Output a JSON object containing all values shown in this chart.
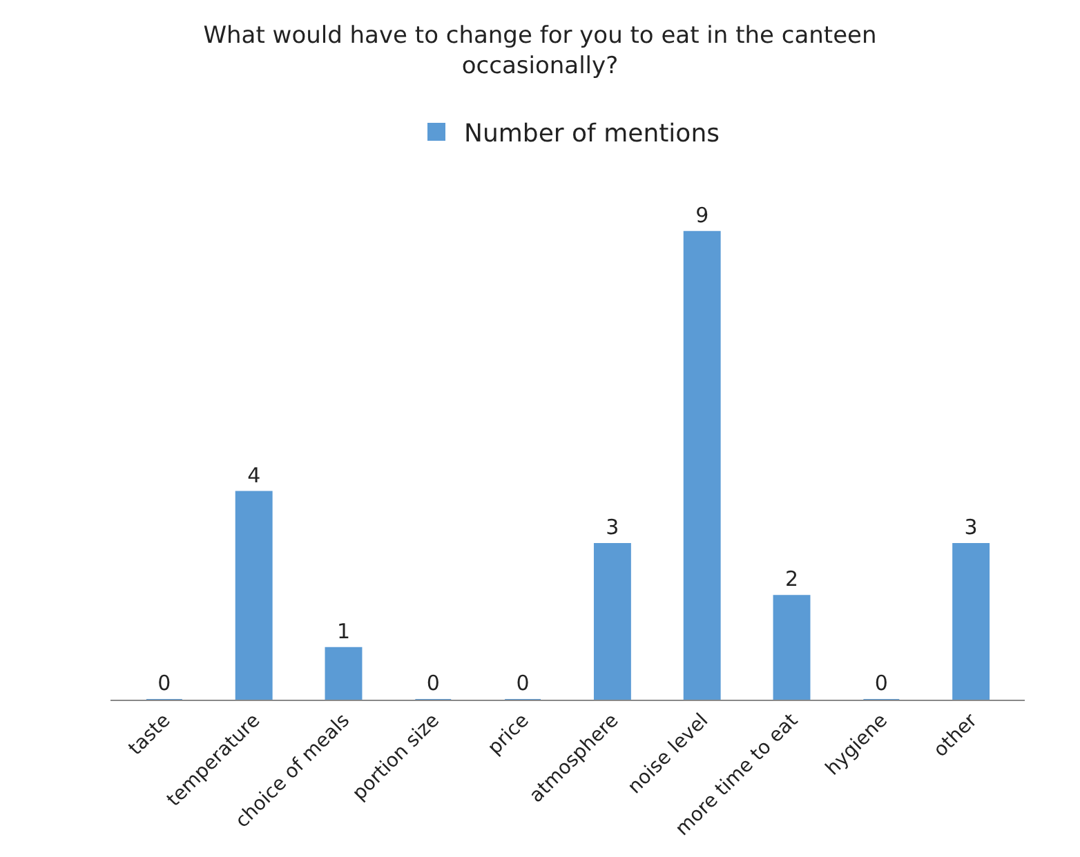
{
  "chart_data": {
    "type": "bar",
    "title": "What would have to change for you to eat in the canteen occasionally?",
    "categories": [
      "taste",
      "temperature",
      "choice of meals",
      "portion size",
      "price",
      "atmosphere",
      "noise level",
      "more time to eat",
      "hygiene",
      "other"
    ],
    "series": [
      {
        "name": "Number of mentions",
        "color": "#5b9bd5",
        "values": [
          0,
          4,
          1,
          0,
          0,
          3,
          9,
          2,
          0,
          3
        ]
      }
    ],
    "data_labels": true,
    "legend": "top"
  }
}
